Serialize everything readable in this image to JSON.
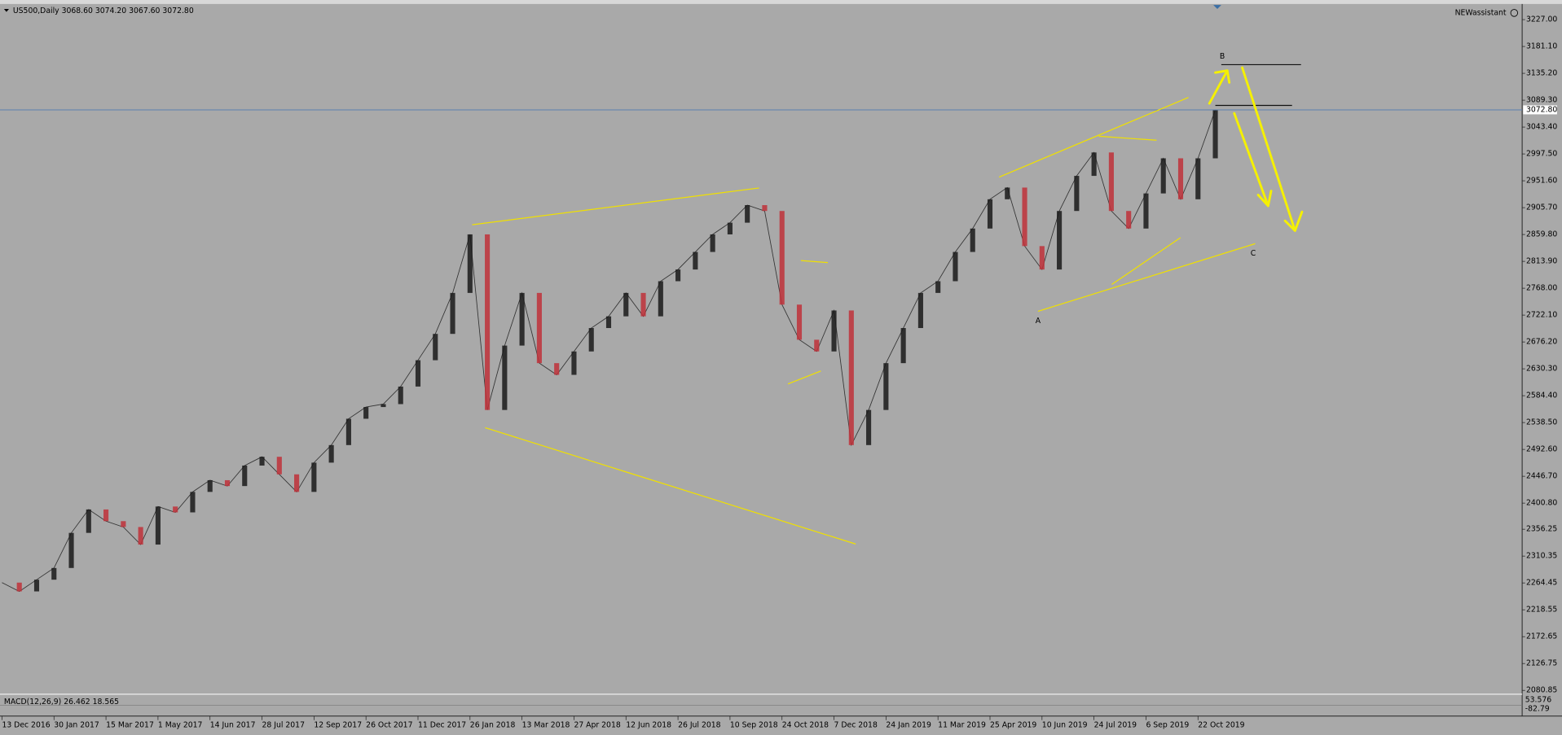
{
  "chart_data": {
    "type": "candlestick",
    "header": "US500,Daily  3068.60 3074.20 3067.60 3072.80",
    "assistant": "NEWassistant",
    "indicator_label": "MACD(12,26,9) 26.462 18.565",
    "indicator_axis_labels": [
      "53.576",
      "-82.79"
    ],
    "annotations": [
      "A",
      "B",
      "C"
    ],
    "background": "#a9a9a9",
    "up_color": "#1a1a1a",
    "down_color": "#c0313a",
    "last_price": {
      "value": 3072.8,
      "label": "3072.80"
    },
    "categories": [
      "13 Dec 2016",
      null,
      null,
      "30 Jan 2017",
      null,
      null,
      "15 Mar 2017",
      null,
      null,
      "1 May 2017",
      null,
      null,
      "14 Jun 2017",
      null,
      null,
      "28 Jul 2017",
      null,
      null,
      "12 Sep 2017",
      null,
      null,
      "26 Oct 2017",
      null,
      null,
      "11 Dec 2017",
      null,
      null,
      "26 Jan 2018",
      null,
      null,
      "13 Mar 2018",
      null,
      null,
      "27 Apr 2018",
      null,
      null,
      "12 Jun 2018",
      null,
      null,
      "26 Jul 2018",
      null,
      null,
      "10 Sep 2018",
      null,
      null,
      "24 Oct 2018",
      null,
      null,
      "7 Dec 2018",
      null,
      null,
      "24 Jan 2019",
      null,
      null,
      "11 Mar 2019",
      null,
      null,
      "25 Apr 2019",
      null,
      null,
      "10 Jun 2019",
      null,
      null,
      "24 Jul 2019",
      null,
      null,
      "6 Sep 2019",
      null,
      null,
      "22 Oct 2019",
      null
    ],
    "series": [
      {
        "name": "US500",
        "values": [
          2265,
          2250,
          2270,
          2290,
          2350,
          2390,
          2370,
          2360,
          2330,
          2395,
          2385,
          2420,
          2440,
          2430,
          2465,
          2480,
          2450,
          2420,
          2470,
          2500,
          2545,
          2565,
          2570,
          2600,
          2645,
          2690,
          2760,
          2860,
          2560,
          2670,
          2760,
          2640,
          2620,
          2660,
          2700,
          2720,
          2760,
          2720,
          2780,
          2800,
          2830,
          2860,
          2880,
          2910,
          2900,
          2740,
          2680,
          2660,
          2730,
          2500,
          2560,
          2640,
          2700,
          2760,
          2780,
          2830,
          2870,
          2920,
          2940,
          2840,
          2800,
          2900,
          2960,
          3000,
          2900,
          2870,
          2930,
          2990,
          2920,
          2990,
          3072.8
        ]
      }
    ],
    "ylim": [
      2076,
      3252
    ],
    "yticks": [
      {
        "value": 3227,
        "label": "3227.00"
      },
      {
        "value": 3181.1,
        "label": "3181.10"
      },
      {
        "value": 3135.2,
        "label": "3135.20"
      },
      {
        "value": 3089.3,
        "label": "3089.30"
      },
      {
        "value": 3043.4,
        "label": "3043.40"
      },
      {
        "value": 2997.5,
        "label": "2997.50"
      },
      {
        "value": 2951.6,
        "label": "2951.60"
      },
      {
        "value": 2905.7,
        "label": "2905.70"
      },
      {
        "value": 2859.8,
        "label": "2859.80"
      },
      {
        "value": 2813.9,
        "label": "2813.90"
      },
      {
        "value": 2768,
        "label": "2768.00"
      },
      {
        "value": 2722.1,
        "label": "2722.10"
      },
      {
        "value": 2676.2,
        "label": "2676.20"
      },
      {
        "value": 2630.3,
        "label": "2630.30"
      },
      {
        "value": 2584.4,
        "label": "2584.40"
      },
      {
        "value": 2538.5,
        "label": "2538.50"
      },
      {
        "value": 2492.6,
        "label": "2492.60"
      },
      {
        "value": 2446.7,
        "label": "2446.70"
      },
      {
        "value": 2400.8,
        "label": "2400.80"
      },
      {
        "value": 2356.25,
        "label": "2356.25"
      },
      {
        "value": 2310.35,
        "label": "2310.35"
      },
      {
        "value": 2264.45,
        "label": "2264.45"
      },
      {
        "value": 2218.55,
        "label": "2218.55"
      },
      {
        "value": 2172.65,
        "label": "2172.65"
      },
      {
        "value": 2126.75,
        "label": "2126.75"
      },
      {
        "value": 2080.85,
        "label": "2080.85"
      }
    ],
    "grid": false
  }
}
